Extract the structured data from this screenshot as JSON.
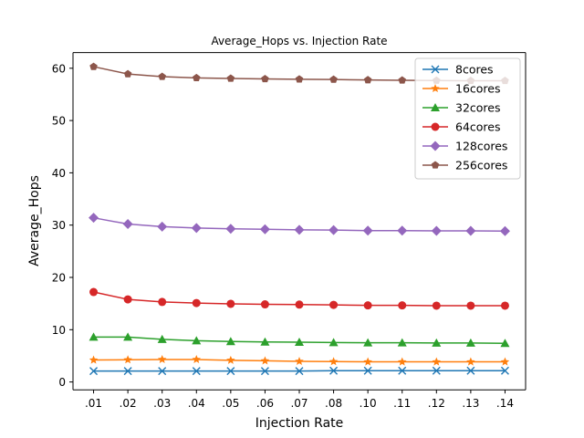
{
  "chart_data": {
    "type": "line",
    "title": "Average_Hops vs. Injection Rate",
    "xlabel": "Injection Rate",
    "ylabel": "Average_Hops",
    "categories": [
      ".01",
      ".02",
      ".03",
      ".04",
      ".05",
      ".06",
      ".07",
      ".08",
      ".10",
      ".11",
      ".12",
      ".13",
      ".14"
    ],
    "ylim": [
      -1.5,
      63
    ],
    "yticks": [
      "0",
      "10",
      "20",
      "30",
      "40",
      "50",
      "60"
    ],
    "grid": false,
    "legend_position": "top-right",
    "series": [
      {
        "name": "8cores",
        "color": "#1f77b4",
        "marker": "x",
        "values": [
          2.1,
          2.1,
          2.1,
          2.1,
          2.1,
          2.1,
          2.1,
          2.15,
          2.15,
          2.15,
          2.15,
          2.15,
          2.15
        ]
      },
      {
        "name": "16cores",
        "color": "#ff7f0e",
        "marker": "star",
        "values": [
          4.2,
          4.25,
          4.3,
          4.3,
          4.15,
          4.05,
          3.95,
          3.9,
          3.85,
          3.85,
          3.85,
          3.85,
          3.85
        ]
      },
      {
        "name": "32cores",
        "color": "#2ca02c",
        "marker": "triangle",
        "values": [
          8.6,
          8.6,
          8.15,
          7.9,
          7.75,
          7.65,
          7.6,
          7.55,
          7.5,
          7.5,
          7.45,
          7.45,
          7.4
        ]
      },
      {
        "name": "64cores",
        "color": "#d62728",
        "marker": "circle",
        "values": [
          17.2,
          15.8,
          15.3,
          15.1,
          14.95,
          14.85,
          14.8,
          14.75,
          14.65,
          14.65,
          14.6,
          14.6,
          14.6
        ]
      },
      {
        "name": "128cores",
        "color": "#9467bd",
        "marker": "diamond",
        "values": [
          31.4,
          30.2,
          29.7,
          29.45,
          29.3,
          29.2,
          29.1,
          29.05,
          28.95,
          28.95,
          28.9,
          28.9,
          28.85
        ]
      },
      {
        "name": "256cores",
        "color": "#8c564b",
        "marker": "pentagon",
        "values": [
          60.3,
          58.9,
          58.4,
          58.15,
          58.05,
          57.95,
          57.9,
          57.85,
          57.75,
          57.7,
          57.65,
          57.6,
          57.6
        ]
      }
    ]
  }
}
